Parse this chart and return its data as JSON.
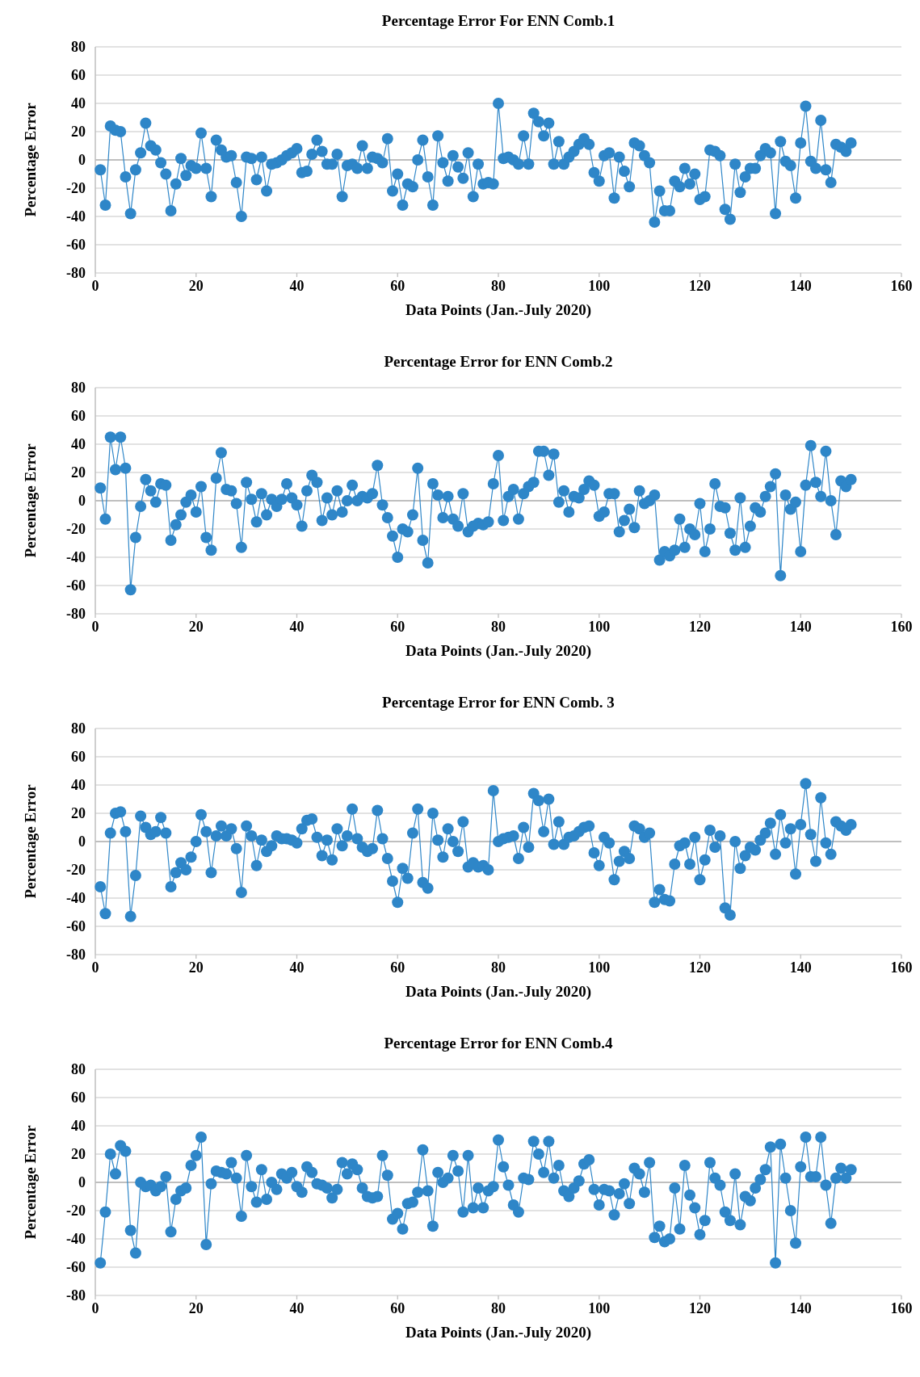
{
  "chart_data": [
    {
      "type": "line",
      "title": "Percentage Error For ENN Comb.1",
      "xlabel": "Data Points (Jan.-July 2020)",
      "ylabel": "Percentage Error",
      "xlim": [
        0,
        160
      ],
      "xticks": [
        0,
        20,
        40,
        60,
        80,
        100,
        120,
        140,
        160
      ],
      "ylim": [
        -80,
        80
      ],
      "yticks": [
        -80,
        -60,
        -40,
        -20,
        0,
        20,
        40,
        60,
        80
      ],
      "grid": "y",
      "marker": "circle",
      "x": [
        1,
        2,
        3,
        4,
        5,
        6,
        7,
        8,
        9,
        10,
        11,
        12,
        13,
        14,
        15,
        16,
        17,
        18,
        19,
        20,
        21,
        22,
        23,
        24,
        25,
        26,
        27,
        28,
        29,
        30,
        31,
        32,
        33,
        34,
        35,
        36,
        37,
        38,
        39,
        40,
        41,
        42,
        43,
        44,
        45,
        46,
        47,
        48,
        49,
        50,
        51,
        52,
        53,
        54,
        55,
        56,
        57,
        58,
        59,
        60,
        61,
        62,
        63,
        64,
        65,
        66,
        67,
        68,
        69,
        70,
        71,
        72,
        73,
        74,
        75,
        76,
        77,
        78,
        79,
        80,
        81,
        82,
        83,
        84,
        85,
        86,
        87,
        88,
        89,
        90,
        91,
        92,
        93,
        94,
        95,
        96,
        97,
        98,
        99,
        100,
        101,
        102,
        103,
        104,
        105,
        106,
        107,
        108,
        109,
        110,
        111,
        112,
        113,
        114,
        115,
        116,
        117,
        118,
        119,
        120,
        121,
        122,
        123,
        124,
        125,
        126,
        127,
        128,
        129,
        130,
        131,
        132,
        133,
        134,
        135,
        136,
        137,
        138,
        139,
        140,
        141,
        142,
        143,
        144,
        145,
        146,
        147,
        148,
        149,
        150
      ],
      "series": [
        {
          "color": "#2e86c8",
          "values": [
            -7,
            -32,
            24,
            21,
            20,
            -12,
            -38,
            -7,
            5,
            26,
            10,
            7,
            -2,
            -10,
            -36,
            -17,
            1,
            -11,
            -4,
            -6,
            19,
            -6,
            -26,
            14,
            7,
            2,
            3,
            -16,
            -40,
            2,
            1,
            -14,
            2,
            -22,
            -3,
            -2,
            0,
            3,
            5,
            8,
            -9,
            -8,
            4,
            14,
            6,
            -3,
            -3,
            4,
            -26,
            -4,
            -3,
            -6,
            10,
            -6,
            2,
            1,
            -2,
            15,
            -22,
            -10,
            -32,
            -17,
            -19,
            0,
            14,
            -12,
            -32,
            17,
            -2,
            -15,
            3,
            -5,
            -13,
            5,
            -26,
            -3,
            -17,
            -16,
            -17,
            40,
            1,
            2,
            0,
            -3,
            17,
            -3,
            33,
            27,
            17,
            26,
            -3,
            13,
            -3,
            2,
            6,
            11,
            15,
            11,
            -9,
            -15,
            3,
            5,
            -27,
            2,
            -8,
            -19,
            12,
            10,
            3,
            -2,
            -44,
            -22,
            -36,
            -36,
            -15,
            -19,
            -6,
            -17,
            -10,
            -28,
            -26,
            7,
            6,
            3,
            -35,
            -42,
            -3,
            -23,
            -12,
            -6,
            -6,
            3,
            8,
            5,
            -38,
            13,
            -1,
            -4,
            -27,
            12,
            38,
            -1,
            -6,
            28,
            -7,
            -16,
            11,
            9,
            6,
            12
          ]
        }
      ]
    },
    {
      "type": "line",
      "title": "Percentage Error for ENN Comb.2",
      "xlabel": "Data Points (Jan.-July 2020)",
      "ylabel": "Percentage Error",
      "xlim": [
        0,
        160
      ],
      "xticks": [
        0,
        20,
        40,
        60,
        80,
        100,
        120,
        140,
        160
      ],
      "ylim": [
        -80,
        80
      ],
      "yticks": [
        -80,
        -60,
        -40,
        -20,
        0,
        20,
        40,
        60,
        80
      ],
      "grid": "y",
      "marker": "circle",
      "x": [
        1,
        2,
        3,
        4,
        5,
        6,
        7,
        8,
        9,
        10,
        11,
        12,
        13,
        14,
        15,
        16,
        17,
        18,
        19,
        20,
        21,
        22,
        23,
        24,
        25,
        26,
        27,
        28,
        29,
        30,
        31,
        32,
        33,
        34,
        35,
        36,
        37,
        38,
        39,
        40,
        41,
        42,
        43,
        44,
        45,
        46,
        47,
        48,
        49,
        50,
        51,
        52,
        53,
        54,
        55,
        56,
        57,
        58,
        59,
        60,
        61,
        62,
        63,
        64,
        65,
        66,
        67,
        68,
        69,
        70,
        71,
        72,
        73,
        74,
        75,
        76,
        77,
        78,
        79,
        80,
        81,
        82,
        83,
        84,
        85,
        86,
        87,
        88,
        89,
        90,
        91,
        92,
        93,
        94,
        95,
        96,
        97,
        98,
        99,
        100,
        101,
        102,
        103,
        104,
        105,
        106,
        107,
        108,
        109,
        110,
        111,
        112,
        113,
        114,
        115,
        116,
        117,
        118,
        119,
        120,
        121,
        122,
        123,
        124,
        125,
        126,
        127,
        128,
        129,
        130,
        131,
        132,
        133,
        134,
        135,
        136,
        137,
        138,
        139,
        140,
        141,
        142,
        143,
        144,
        145,
        146,
        147,
        148,
        149,
        150
      ],
      "series": [
        {
          "color": "#2e86c8",
          "values": [
            9,
            -13,
            45,
            22,
            45,
            23,
            -63,
            -26,
            -4,
            15,
            7,
            -1,
            12,
            11,
            -28,
            -17,
            -10,
            -1,
            4,
            -8,
            10,
            -26,
            -35,
            16,
            34,
            8,
            7,
            -2,
            -33,
            13,
            1,
            -15,
            5,
            -10,
            1,
            -4,
            1,
            12,
            2,
            -3,
            -18,
            7,
            18,
            13,
            -14,
            2,
            -10,
            7,
            -8,
            0,
            11,
            0,
            3,
            2,
            5,
            25,
            -3,
            -12,
            -25,
            -40,
            -20,
            -22,
            -10,
            23,
            -28,
            -44,
            12,
            4,
            -12,
            3,
            -13,
            -18,
            5,
            -22,
            -18,
            -16,
            -17,
            -15,
            12,
            32,
            -14,
            3,
            8,
            -13,
            5,
            10,
            13,
            35,
            35,
            18,
            33,
            -1,
            7,
            -8,
            3,
            2,
            8,
            14,
            11,
            -11,
            -8,
            5,
            5,
            -22,
            -14,
            -6,
            -19,
            7,
            -2,
            0,
            4,
            -42,
            -36,
            -39,
            -35,
            -13,
            -33,
            -20,
            -24,
            -2,
            -36,
            -20,
            12,
            -4,
            -5,
            -23,
            -35,
            2,
            -33,
            -18,
            -5,
            -8,
            3,
            10,
            19,
            -53,
            4,
            -6,
            -1,
            -36,
            11,
            39,
            13,
            3,
            35,
            0,
            -24,
            14,
            10,
            15
          ]
        }
      ]
    },
    {
      "type": "line",
      "title": "Percentage Error for ENN Comb. 3",
      "xlabel": "Data Points (Jan.-July 2020)",
      "ylabel": "Percentage Error",
      "xlim": [
        0,
        160
      ],
      "xticks": [
        0,
        20,
        40,
        60,
        80,
        100,
        120,
        140,
        160
      ],
      "ylim": [
        -80,
        80
      ],
      "yticks": [
        -80,
        -60,
        -40,
        -20,
        0,
        20,
        40,
        60,
        80
      ],
      "grid": "y",
      "marker": "circle",
      "x": [
        1,
        2,
        3,
        4,
        5,
        6,
        7,
        8,
        9,
        10,
        11,
        12,
        13,
        14,
        15,
        16,
        17,
        18,
        19,
        20,
        21,
        22,
        23,
        24,
        25,
        26,
        27,
        28,
        29,
        30,
        31,
        32,
        33,
        34,
        35,
        36,
        37,
        38,
        39,
        40,
        41,
        42,
        43,
        44,
        45,
        46,
        47,
        48,
        49,
        50,
        51,
        52,
        53,
        54,
        55,
        56,
        57,
        58,
        59,
        60,
        61,
        62,
        63,
        64,
        65,
        66,
        67,
        68,
        69,
        70,
        71,
        72,
        73,
        74,
        75,
        76,
        77,
        78,
        79,
        80,
        81,
        82,
        83,
        84,
        85,
        86,
        87,
        88,
        89,
        90,
        91,
        92,
        93,
        94,
        95,
        96,
        97,
        98,
        99,
        100,
        101,
        102,
        103,
        104,
        105,
        106,
        107,
        108,
        109,
        110,
        111,
        112,
        113,
        114,
        115,
        116,
        117,
        118,
        119,
        120,
        121,
        122,
        123,
        124,
        125,
        126,
        127,
        128,
        129,
        130,
        131,
        132,
        133,
        134,
        135,
        136,
        137,
        138,
        139,
        140,
        141,
        142,
        143,
        144,
        145,
        146,
        147,
        148,
        149,
        150
      ],
      "series": [
        {
          "color": "#2e86c8",
          "values": [
            -32,
            -51,
            6,
            20,
            21,
            7,
            -53,
            -24,
            18,
            10,
            5,
            7,
            17,
            6,
            -32,
            -22,
            -15,
            -20,
            -11,
            0,
            19,
            7,
            -22,
            4,
            11,
            4,
            9,
            -5,
            -36,
            11,
            4,
            -17,
            1,
            -7,
            -3,
            4,
            2,
            2,
            1,
            -1,
            9,
            15,
            16,
            3,
            -10,
            1,
            -13,
            9,
            -3,
            4,
            23,
            2,
            -4,
            -7,
            -5,
            22,
            2,
            -12,
            -28,
            -43,
            -19,
            -26,
            6,
            23,
            -29,
            -33,
            20,
            1,
            -11,
            9,
            0,
            -7,
            14,
            -18,
            -15,
            -18,
            -17,
            -20,
            36,
            0,
            2,
            3,
            4,
            -12,
            10,
            -4,
            34,
            29,
            7,
            30,
            -2,
            14,
            -2,
            3,
            4,
            7,
            10,
            11,
            -8,
            -17,
            3,
            -1,
            -27,
            -14,
            -7,
            -12,
            11,
            9,
            3,
            6,
            -43,
            -34,
            -41,
            -42,
            -16,
            -3,
            -1,
            -16,
            3,
            -27,
            -13,
            8,
            -4,
            4,
            -47,
            -52,
            0,
            -19,
            -10,
            -4,
            -6,
            1,
            6,
            13,
            -9,
            19,
            -1,
            9,
            -23,
            12,
            41,
            5,
            -14,
            31,
            -1,
            -9,
            14,
            11,
            8,
            12
          ]
        }
      ]
    },
    {
      "type": "line",
      "title": "Percentage Error for ENN Comb.4",
      "xlabel": "Data Points (Jan.-July 2020)",
      "ylabel": "Percentage Error",
      "xlim": [
        0,
        160
      ],
      "xticks": [
        0,
        20,
        40,
        60,
        80,
        100,
        120,
        140,
        160
      ],
      "ylim": [
        -80,
        80
      ],
      "yticks": [
        -80,
        -60,
        -40,
        -20,
        0,
        20,
        40,
        60,
        80
      ],
      "grid": "y",
      "marker": "circle",
      "x": [
        1,
        2,
        3,
        4,
        5,
        6,
        7,
        8,
        9,
        10,
        11,
        12,
        13,
        14,
        15,
        16,
        17,
        18,
        19,
        20,
        21,
        22,
        23,
        24,
        25,
        26,
        27,
        28,
        29,
        30,
        31,
        32,
        33,
        34,
        35,
        36,
        37,
        38,
        39,
        40,
        41,
        42,
        43,
        44,
        45,
        46,
        47,
        48,
        49,
        50,
        51,
        52,
        53,
        54,
        55,
        56,
        57,
        58,
        59,
        60,
        61,
        62,
        63,
        64,
        65,
        66,
        67,
        68,
        69,
        70,
        71,
        72,
        73,
        74,
        75,
        76,
        77,
        78,
        79,
        80,
        81,
        82,
        83,
        84,
        85,
        86,
        87,
        88,
        89,
        90,
        91,
        92,
        93,
        94,
        95,
        96,
        97,
        98,
        99,
        100,
        101,
        102,
        103,
        104,
        105,
        106,
        107,
        108,
        109,
        110,
        111,
        112,
        113,
        114,
        115,
        116,
        117,
        118,
        119,
        120,
        121,
        122,
        123,
        124,
        125,
        126,
        127,
        128,
        129,
        130,
        131,
        132,
        133,
        134,
        135,
        136,
        137,
        138,
        139,
        140,
        141,
        142,
        143,
        144,
        145,
        146,
        147,
        148,
        149,
        150
      ],
      "series": [
        {
          "color": "#2e86c8",
          "values": [
            -57,
            -21,
            20,
            6,
            26,
            22,
            -34,
            -50,
            0,
            -3,
            -2,
            -6,
            -3,
            4,
            -35,
            -12,
            -6,
            -4,
            12,
            19,
            32,
            -44,
            -1,
            8,
            7,
            6,
            14,
            3,
            -24,
            19,
            -3,
            -14,
            9,
            -12,
            0,
            -5,
            6,
            3,
            7,
            -3,
            -7,
            11,
            7,
            -1,
            -2,
            -4,
            -11,
            -5,
            14,
            6,
            13,
            9,
            -4,
            -10,
            -11,
            -10,
            19,
            5,
            -26,
            -22,
            -33,
            -15,
            -14,
            -7,
            23,
            -6,
            -31,
            7,
            0,
            3,
            19,
            8,
            -21,
            19,
            -18,
            -4,
            -18,
            -6,
            -3,
            30,
            11,
            -2,
            -16,
            -21,
            3,
            2,
            29,
            20,
            7,
            29,
            3,
            12,
            -6,
            -10,
            -4,
            1,
            13,
            16,
            -5,
            -16,
            -5,
            -6,
            -23,
            -8,
            -1,
            -15,
            10,
            6,
            -7,
            14,
            -39,
            -31,
            -42,
            -40,
            -4,
            -33,
            12,
            -9,
            -18,
            -37,
            -27,
            14,
            3,
            -2,
            -21,
            -27,
            6,
            -30,
            -10,
            -13,
            -4,
            2,
            9,
            25,
            -57,
            27,
            3,
            -20,
            -43,
            11,
            32,
            4,
            4,
            32,
            -2,
            -29,
            3,
            10,
            3,
            9
          ]
        }
      ]
    }
  ]
}
